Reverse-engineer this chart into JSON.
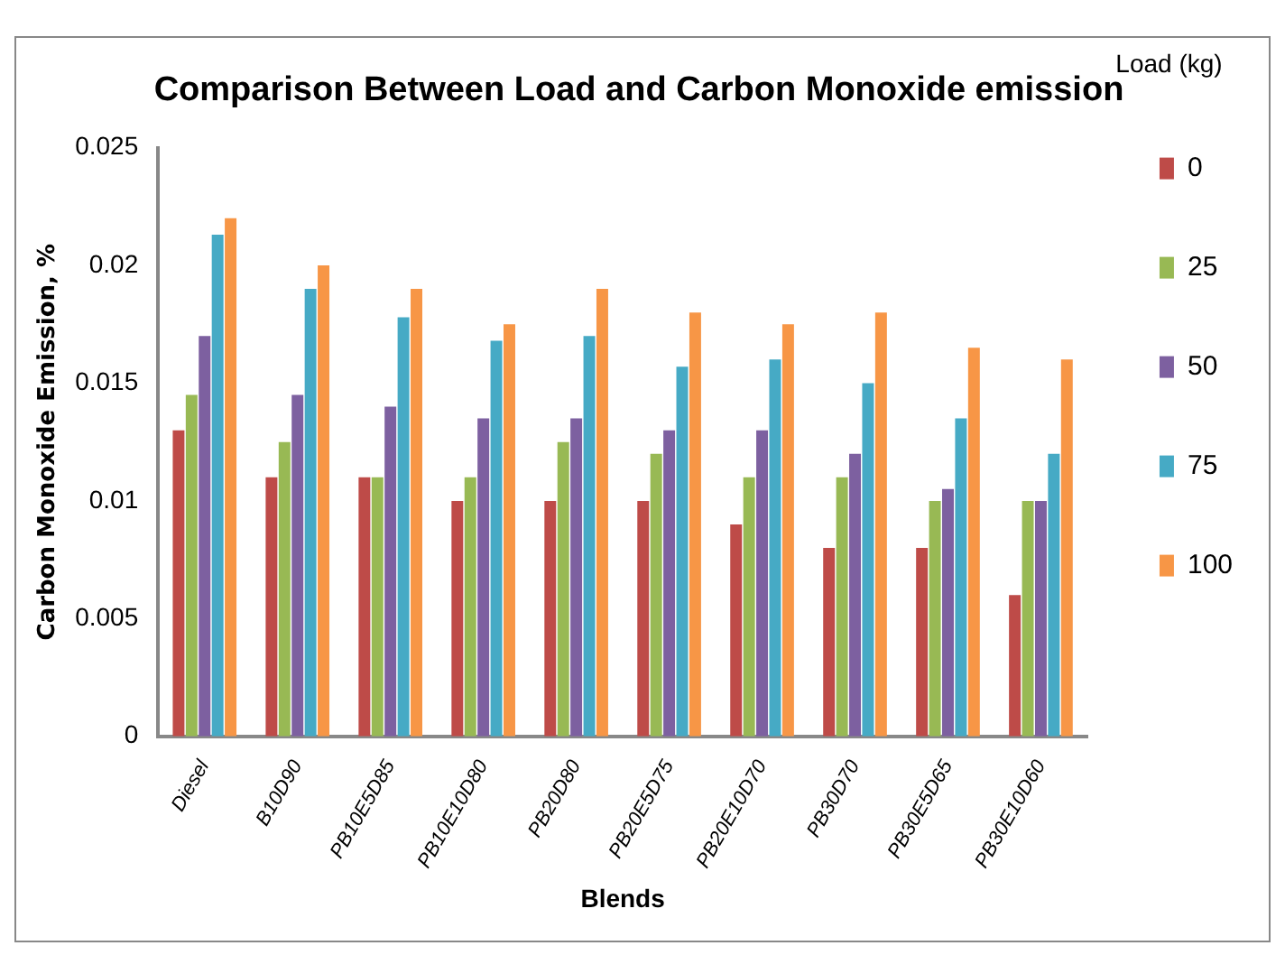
{
  "chart_data": {
    "type": "bar",
    "title": "Comparison Between Load and Carbon Monoxide emission",
    "xlabel": "Blends",
    "ylabel": "Carbon Monoxide Emission, %",
    "legend_title": "Load (kg)",
    "categories": [
      "Diesel",
      "B10D90",
      "PB10E5D85",
      "PB10E10D80",
      "PB20D80",
      "PB20E5D75",
      "PB20E10D70",
      "PB30D70",
      "PB30E5D65",
      "PB30E10D60"
    ],
    "series": [
      {
        "name": "0",
        "color": "#be4b48",
        "values": [
          0.013,
          0.011,
          0.011,
          0.01,
          0.01,
          0.01,
          0.009,
          0.008,
          0.008,
          0.006
        ]
      },
      {
        "name": "25",
        "color": "#98b954",
        "values": [
          0.0145,
          0.0125,
          0.011,
          0.011,
          0.0125,
          0.012,
          0.011,
          0.011,
          0.01,
          0.01
        ]
      },
      {
        "name": "50",
        "color": "#7d60a0",
        "values": [
          0.017,
          0.0145,
          0.014,
          0.0135,
          0.0135,
          0.013,
          0.013,
          0.012,
          0.0105,
          0.01
        ]
      },
      {
        "name": "75",
        "color": "#46aac5",
        "values": [
          0.0213,
          0.019,
          0.0178,
          0.0168,
          0.017,
          0.0157,
          0.016,
          0.015,
          0.0135,
          0.012
        ]
      },
      {
        "name": "100",
        "color": "#f79646",
        "values": [
          0.022,
          0.02,
          0.019,
          0.0175,
          0.019,
          0.018,
          0.0175,
          0.018,
          0.0165,
          0.016
        ]
      }
    ],
    "ylim": [
      0,
      0.025
    ],
    "yticks": [
      0,
      0.005,
      0.01,
      0.015,
      0.02,
      0.025
    ],
    "grid": false,
    "legend": "right"
  }
}
